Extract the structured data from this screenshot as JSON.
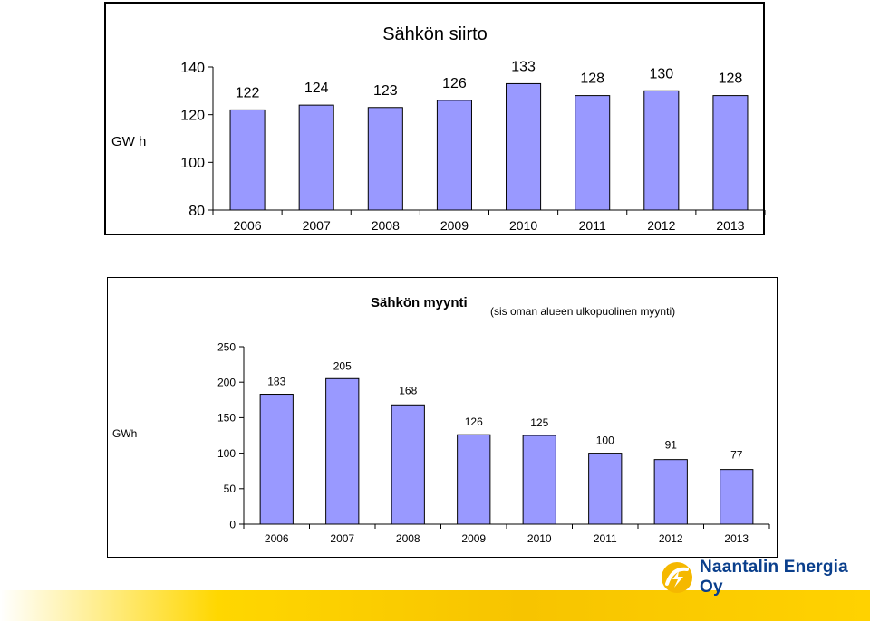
{
  "chart_data": [
    {
      "type": "bar",
      "title": "Sähkön siirto",
      "subtitle": "",
      "ylabel": "GW h",
      "xlabel": "",
      "categories": [
        "2006",
        "2007",
        "2008",
        "2009",
        "2010",
        "2011",
        "2012",
        "2013"
      ],
      "values": [
        122,
        124,
        123,
        126,
        133,
        128,
        130,
        128
      ],
      "ylim": [
        80,
        140
      ],
      "yticks": [
        "80",
        "100",
        "120",
        "140"
      ],
      "bar_color": "#9999ff",
      "grid": false
    },
    {
      "type": "bar",
      "title": "Sähkön myynti",
      "subtitle": "(sis oman alueen ulkopuolinen myynti)",
      "ylabel": "GWh",
      "xlabel": "",
      "categories": [
        "2006",
        "2007",
        "2008",
        "2009",
        "2010",
        "2011",
        "2012",
        "2013"
      ],
      "values": [
        183,
        205,
        168,
        126,
        125,
        100,
        91,
        77
      ],
      "ylim": [
        0,
        250
      ],
      "yticks": [
        "0",
        "50",
        "100",
        "150",
        "200",
        "250"
      ],
      "bar_color": "#9999ff",
      "grid": false
    }
  ],
  "brand": {
    "name": "Naantalin Energia Oy",
    "primary_color": "#0a3f8c",
    "accent_color": "#f5b800"
  }
}
